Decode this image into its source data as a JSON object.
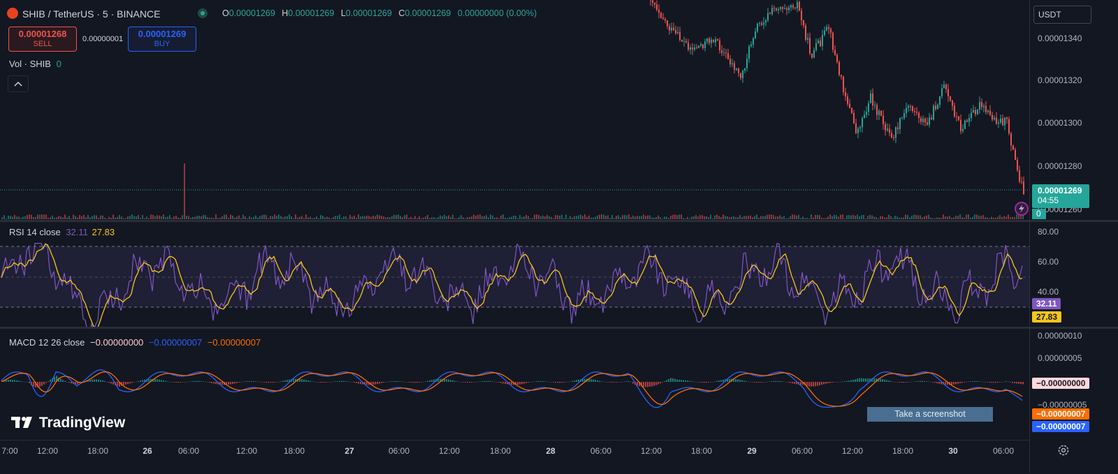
{
  "symbol": {
    "base": "SHIB",
    "separator": "/",
    "quote_name": "TetherUS",
    "interval": "5",
    "exchange": "BINANCE"
  },
  "ohlc": {
    "o_label": "O",
    "o": "0.00001269",
    "h_label": "H",
    "h": "0.00001269",
    "l_label": "L",
    "l": "0.00001269",
    "c_label": "C",
    "c": "0.00001269",
    "change": "0.00000000 (0.00%)"
  },
  "trade": {
    "sell_price": "0.00001268",
    "sell_label": "SELL",
    "spread": "0.00000001",
    "buy_price": "0.00001269",
    "buy_label": "BUY"
  },
  "volume": {
    "label": "Vol · SHIB",
    "value": "0"
  },
  "currency_button": "USDT",
  "price_axis": [
    "0.00001340",
    "0.00001320",
    "0.00001300",
    "0.00001280",
    "0.00001260"
  ],
  "last_price": {
    "value": "0.00001269",
    "countdown": "04:55",
    "volume": "0"
  },
  "rsi": {
    "label": "RSI 14 close",
    "value": "32.11",
    "ma_value": "27.83",
    "axis": [
      "80.00",
      "60.00",
      "40.00"
    ]
  },
  "macd": {
    "label": "MACD 12 26 close",
    "hist": "−0.00000000",
    "macd": "−0.00000007",
    "signal": "−0.00000007",
    "axis": [
      "0.00000010",
      "0.00000005",
      "−0.00000005"
    ],
    "tag_hist": "−0.00000000",
    "tag_signal": "−0.00000007",
    "tag_macd": "−0.00000007"
  },
  "time_axis": [
    "7:00",
    "12:00",
    "18:00",
    "26",
    "06:00",
    "12:00",
    "18:00",
    "27",
    "06:00",
    "12:00",
    "18:00",
    "28",
    "06:00",
    "12:00",
    "18:00",
    "29",
    "06:00",
    "12:00",
    "18:00",
    "30",
    "06:00"
  ],
  "watermark": "TradingView",
  "screenshot_tooltip": "Take a screenshot",
  "colors": {
    "bg": "#131722",
    "up": "#26a69a",
    "down": "#ef5350",
    "rsi": "#7e57c2",
    "rsi_ma": "#f7c51a",
    "macd": "#2962ff",
    "signal": "#ff6d00"
  },
  "icons": {
    "collapse": "chevron-up-icon",
    "settings": "gear-icon",
    "alert": "lightning-icon",
    "logo": "shib-logo-icon"
  }
}
